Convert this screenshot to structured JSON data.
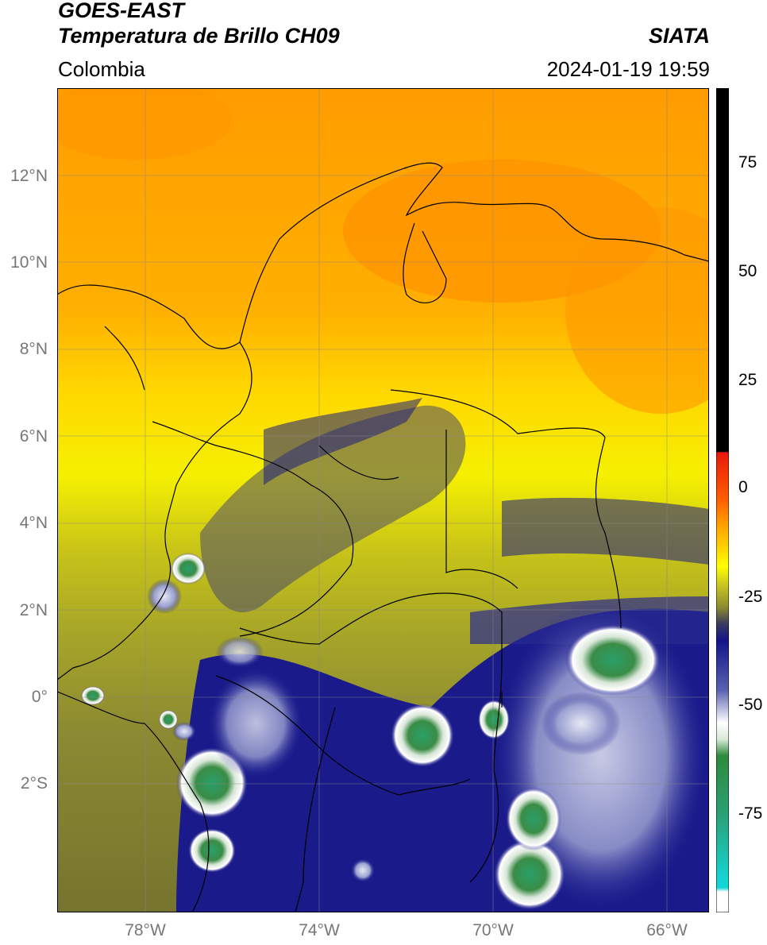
{
  "header": {
    "satellite": "GOES-EAST",
    "product": "Temperatura de Brillo CH09",
    "organization": "SIATA",
    "region": "Colombia",
    "datetime": "2024-01-19 19:59"
  },
  "map": {
    "lat_labels": [
      "12°N",
      "10°N",
      "8°N",
      "6°N",
      "4°N",
      "2°N",
      "0°",
      "2°S"
    ],
    "lon_labels": [
      "78°W",
      "74°W",
      "70°W",
      "66°W"
    ]
  },
  "colorbar": {
    "ticks": [
      "75",
      "50",
      "25",
      "0",
      "-25",
      "-50",
      "-75"
    ],
    "colors": {
      "black": "#000000",
      "red": "#e6100c",
      "orange": "#ff9a00",
      "yellow": "#ffff00",
      "olive": "#8a8a30",
      "navy": "#14148a",
      "white": "#ffffff",
      "green": "#2e8a3c",
      "cyan": "#16d4d4"
    }
  }
}
